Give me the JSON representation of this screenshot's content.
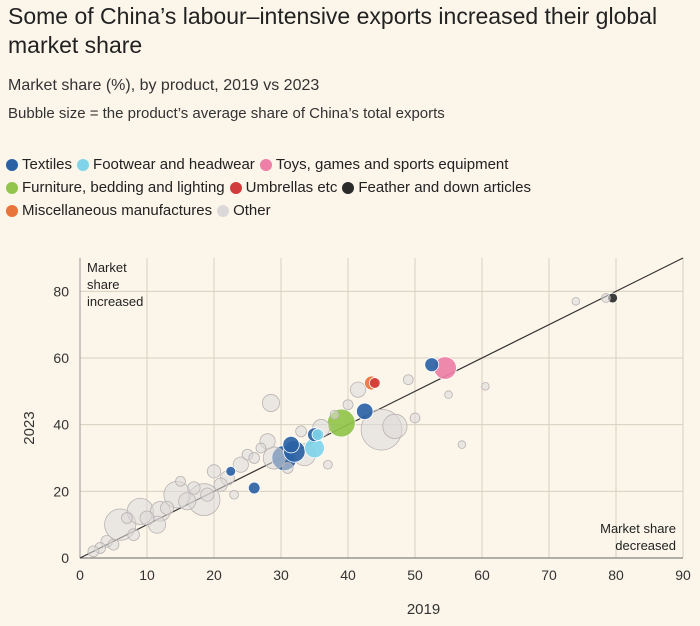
{
  "header": {
    "title": "Some of China’s labour–intensive exports increased their global market share",
    "subtitle": "Market share (%), by product, 2019 vs 2023",
    "note": "Bubble size = the product’s average share of China’s total exports"
  },
  "legend": {
    "rows": [
      [
        {
          "label": "Textiles",
          "color": "#2a62a5"
        },
        {
          "label": "Footwear and headwear",
          "color": "#7fd4ea"
        },
        {
          "label": "Toys, games and sports equipment",
          "color": "#ee7fa6"
        }
      ],
      [
        {
          "label": "Furniture, bedding and lighting",
          "color": "#93c44b"
        },
        {
          "label": "Umbrellas etc",
          "color": "#d23b3b"
        },
        {
          "label": "Feather and down articles",
          "color": "#2b2b2b"
        }
      ],
      [
        {
          "label": "Miscellaneous manufactures",
          "color": "#e8743b"
        },
        {
          "label": "Other",
          "color": "#dcd8d8"
        }
      ]
    ]
  },
  "chart_data": {
    "type": "scatter",
    "title": "Some of China’s labour–intensive exports increased their global market share",
    "subtitle": "Market share (%), by product, 2019 vs 2023",
    "xlabel": "2019",
    "ylabel": "2023",
    "xlim": [
      0,
      90
    ],
    "ylim": [
      0,
      90
    ],
    "xticks": [
      0,
      10,
      20,
      30,
      40,
      50,
      60,
      70,
      80,
      90
    ],
    "yticks": [
      0,
      20,
      40,
      60,
      80
    ],
    "grid": true,
    "reference_line": "y = x",
    "annotations": {
      "upper_left": [
        "Market",
        "share",
        "increased"
      ],
      "lower_right": [
        "Market share",
        "decreased"
      ]
    },
    "size_meaning": "Bubble size = the product’s average share of China’s total exports",
    "series": [
      {
        "name": "Textiles",
        "color": "#2a62a5",
        "points": [
          {
            "x": 30.5,
            "y": 30,
            "size": 3.2
          },
          {
            "x": 32,
            "y": 32,
            "size": 2.4
          },
          {
            "x": 31.5,
            "y": 34,
            "size": 1.4
          },
          {
            "x": 35,
            "y": 37,
            "size": 1.0
          },
          {
            "x": 42.5,
            "y": 44,
            "size": 1.4
          },
          {
            "x": 52.5,
            "y": 58,
            "size": 1.0
          },
          {
            "x": 26,
            "y": 21,
            "size": 0.7
          },
          {
            "x": 22.5,
            "y": 26,
            "size": 0.5
          }
        ]
      },
      {
        "name": "Footwear and headwear",
        "color": "#7fd4ea",
        "points": [
          {
            "x": 35,
            "y": 33,
            "size": 2.0
          },
          {
            "x": 35.5,
            "y": 37,
            "size": 0.7
          }
        ]
      },
      {
        "name": "Toys, games and sports equipment",
        "color": "#ee7fa6",
        "points": [
          {
            "x": 54.5,
            "y": 57,
            "size": 2.6
          }
        ]
      },
      {
        "name": "Furniture, bedding and lighting",
        "color": "#93c44b",
        "points": [
          {
            "x": 39,
            "y": 40.5,
            "size": 4.0
          }
        ]
      },
      {
        "name": "Umbrellas etc",
        "color": "#d23b3b",
        "points": [
          {
            "x": 44,
            "y": 52.5,
            "size": 0.6
          }
        ]
      },
      {
        "name": "Feather and down articles",
        "color": "#2b2b2b",
        "points": [
          {
            "x": 79.5,
            "y": 78,
            "size": 0.5
          }
        ]
      },
      {
        "name": "Miscellaneous manufactures",
        "color": "#e8743b",
        "points": [
          {
            "x": 43.5,
            "y": 52.5,
            "size": 1.0
          }
        ]
      },
      {
        "name": "Other",
        "color": "#dcd8d8",
        "points": [
          {
            "x": 6,
            "y": 10,
            "size": 5.0
          },
          {
            "x": 9,
            "y": 14,
            "size": 3.5
          },
          {
            "x": 14.5,
            "y": 19,
            "size": 3.6
          },
          {
            "x": 18.5,
            "y": 17.5,
            "size": 5.2
          },
          {
            "x": 12,
            "y": 14,
            "size": 2.0
          },
          {
            "x": 11.5,
            "y": 10,
            "size": 1.5
          },
          {
            "x": 16,
            "y": 17,
            "size": 1.5
          },
          {
            "x": 45,
            "y": 38.5,
            "size": 8.5
          },
          {
            "x": 47,
            "y": 39.5,
            "size": 3.0
          },
          {
            "x": 29,
            "y": 30,
            "size": 2.5
          },
          {
            "x": 33.5,
            "y": 31,
            "size": 2.5
          },
          {
            "x": 28,
            "y": 35,
            "size": 1.2
          },
          {
            "x": 36,
            "y": 39,
            "size": 1.5
          },
          {
            "x": 28.5,
            "y": 46.5,
            "size": 1.5
          },
          {
            "x": 41.5,
            "y": 50.5,
            "size": 1.2
          },
          {
            "x": 49,
            "y": 53.5,
            "size": 0.5
          },
          {
            "x": 40,
            "y": 46,
            "size": 0.5
          },
          {
            "x": 50,
            "y": 42,
            "size": 0.5
          },
          {
            "x": 24,
            "y": 28,
            "size": 1.2
          },
          {
            "x": 22,
            "y": 24,
            "size": 1.0
          },
          {
            "x": 20,
            "y": 26,
            "size": 0.9
          },
          {
            "x": 21,
            "y": 22,
            "size": 0.9
          },
          {
            "x": 25,
            "y": 31,
            "size": 0.6
          },
          {
            "x": 26,
            "y": 30,
            "size": 0.6
          },
          {
            "x": 27,
            "y": 33,
            "size": 0.5
          },
          {
            "x": 19,
            "y": 19,
            "size": 0.9
          },
          {
            "x": 17,
            "y": 21,
            "size": 0.8
          },
          {
            "x": 13,
            "y": 15,
            "size": 0.9
          },
          {
            "x": 10,
            "y": 12,
            "size": 1.0
          },
          {
            "x": 8,
            "y": 7,
            "size": 0.7
          },
          {
            "x": 5,
            "y": 4,
            "size": 0.6
          },
          {
            "x": 4,
            "y": 5,
            "size": 0.7
          },
          {
            "x": 3,
            "y": 3,
            "size": 0.6
          },
          {
            "x": 2,
            "y": 2,
            "size": 0.6
          },
          {
            "x": 7,
            "y": 12,
            "size": 0.6
          },
          {
            "x": 15,
            "y": 23,
            "size": 0.5
          },
          {
            "x": 33,
            "y": 38,
            "size": 0.6
          },
          {
            "x": 37,
            "y": 28,
            "size": 0.4
          },
          {
            "x": 60.5,
            "y": 51.5,
            "size": 0.3
          },
          {
            "x": 57,
            "y": 34,
            "size": 0.3
          },
          {
            "x": 74,
            "y": 77,
            "size": 0.3
          },
          {
            "x": 78.5,
            "y": 78,
            "size": 0.4
          },
          {
            "x": 55,
            "y": 49,
            "size": 0.3
          },
          {
            "x": 38,
            "y": 43,
            "size": 0.4
          },
          {
            "x": 31,
            "y": 27,
            "size": 0.6
          },
          {
            "x": 23,
            "y": 19,
            "size": 0.4
          }
        ]
      }
    ]
  }
}
